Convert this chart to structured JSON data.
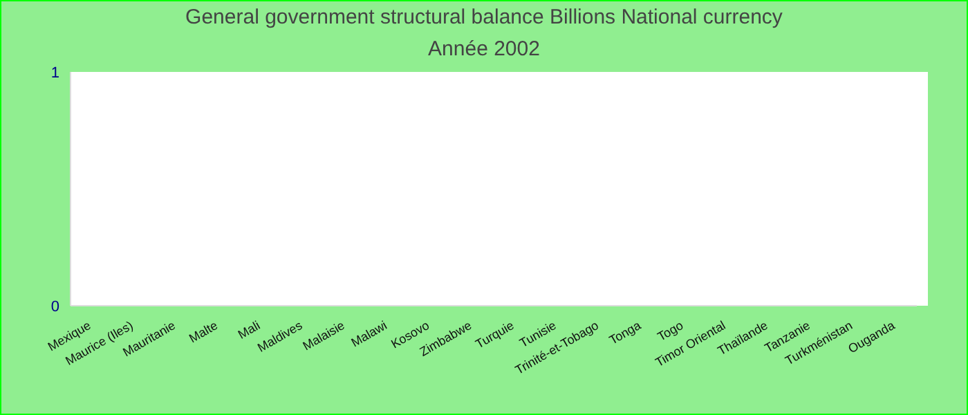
{
  "chart_data": {
    "type": "bar",
    "title": "General government structural balance Billions National currency",
    "subtitle": "Année 2002",
    "categories": [
      "Mexique",
      "Maurice (Iles)",
      "Mauritanie",
      "Malte",
      "Mali",
      "Maldives",
      "Malaisie",
      "Malawi",
      "Kosovo",
      "Zimbabwe",
      "Turquie",
      "Tunisie",
      "Trinité-et-Tobago",
      "Tonga",
      "Togo",
      "Timor Oriental",
      "Thaïlande",
      "Tanzanie",
      "Turkménistan",
      "Ouganda"
    ],
    "values": [
      null,
      null,
      null,
      null,
      null,
      null,
      null,
      null,
      null,
      null,
      null,
      null,
      null,
      null,
      null,
      null,
      null,
      null,
      null,
      null
    ],
    "ylim": [
      0,
      1
    ],
    "yticks": [
      0,
      1
    ],
    "grid": false,
    "legend": false
  }
}
